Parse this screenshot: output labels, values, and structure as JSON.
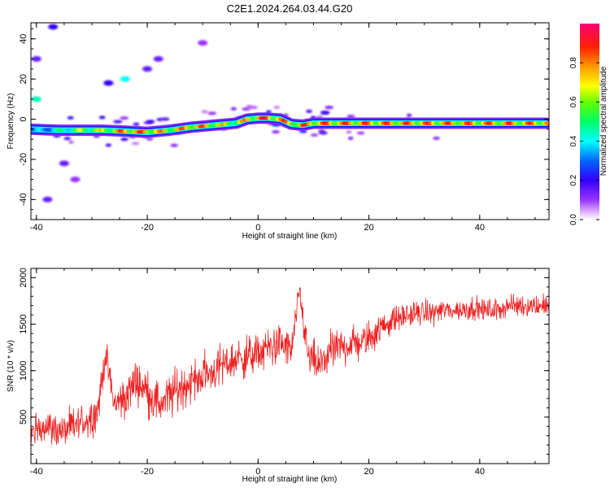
{
  "title": "C2E1.2024.264.03.44.G20",
  "chart_data": [
    {
      "type": "heatmap",
      "xlabel": "Height of straight line (km)",
      "ylabel": "Frequency (Hz)",
      "xlim": [
        -41,
        52.5
      ],
      "ylim": [
        -50,
        48
      ],
      "xticks": [
        -40,
        -20,
        0,
        20,
        40
      ],
      "yticks": [
        -40,
        -20,
        0,
        20,
        40
      ],
      "colorbar": {
        "label": "Normalized spectral amplitude",
        "range": [
          0.0,
          1.0
        ],
        "ticks": [
          0.0,
          0.2,
          0.4,
          0.6,
          0.8
        ],
        "colors": [
          "#ffffff",
          "#cc66ff",
          "#6600ff",
          "#0000ff",
          "#00ffff",
          "#00ff00",
          "#ffff00",
          "#ff8000",
          "#ff0000",
          "#ff0080"
        ]
      },
      "ridge": {
        "x": [
          -41,
          -36,
          -32,
          -28,
          -24,
          -20,
          -16,
          -12,
          -8,
          -4,
          -2,
          0,
          2,
          4,
          6,
          8,
          10,
          14,
          18,
          22,
          26,
          30,
          34,
          40,
          46,
          52
        ],
        "frequency": [
          -5,
          -5.5,
          -5.5,
          -5.5,
          -6,
          -6.5,
          -5.5,
          -4,
          -3,
          -2,
          0,
          0.5,
          0.5,
          0,
          -2.5,
          -3,
          -2,
          -2,
          -2,
          -2,
          -2,
          -2,
          -2,
          -2,
          -2,
          -2
        ],
        "amplitude": [
          0.35,
          0.5,
          0.7,
          0.75,
          0.9,
          0.9,
          0.8,
          0.9,
          0.85,
          0.7,
          0.85,
          0.95,
          0.95,
          0.9,
          0.85,
          0.9,
          0.9,
          0.92,
          0.92,
          0.9,
          0.92,
          0.9,
          0.9,
          0.9,
          0.9,
          0.9
        ]
      },
      "scatter": [
        {
          "x": -40,
          "frequency": 10,
          "amplitude": 0.45
        },
        {
          "x": -37,
          "frequency": 46,
          "amplitude": 0.2
        },
        {
          "x": -27,
          "frequency": 18,
          "amplitude": 0.2
        },
        {
          "x": -24,
          "frequency": 20,
          "amplitude": 0.4
        },
        {
          "x": -20,
          "frequency": 25,
          "amplitude": 0.15
        },
        {
          "x": -18,
          "frequency": 30,
          "amplitude": 0.15
        },
        {
          "x": -10,
          "frequency": 38,
          "amplitude": 0.1
        },
        {
          "x": -40,
          "frequency": 30,
          "amplitude": 0.15
        },
        {
          "x": -35,
          "frequency": -22,
          "amplitude": 0.15
        },
        {
          "x": -38,
          "frequency": -40,
          "amplitude": 0.15
        },
        {
          "x": -33,
          "frequency": -30,
          "amplitude": 0.1
        }
      ]
    },
    {
      "type": "line",
      "xlabel": "Height of straight line (km)",
      "ylabel": "SNR (10 * v/v)",
      "xlim": [
        -41,
        52.5
      ],
      "ylim": [
        0,
        2100
      ],
      "xticks": [
        -40,
        -20,
        0,
        20,
        40
      ],
      "yticks": [
        500,
        1000,
        1500,
        2000
      ],
      "color": "#ee2222",
      "series": [
        {
          "x": [
            -41,
            -39,
            -37,
            -35,
            -33,
            -31,
            -29,
            -27.5,
            -26,
            -24,
            -22,
            -20,
            -18,
            -16,
            -14,
            -12,
            -10,
            -8,
            -6,
            -4,
            -2,
            0,
            2,
            4,
            6,
            7.5,
            9,
            11,
            13,
            15,
            17,
            19,
            21,
            23,
            25,
            27,
            29,
            31,
            33,
            35,
            37,
            39,
            41,
            43,
            45,
            47,
            49,
            51,
            52.5
          ],
          "y": [
            300,
            420,
            380,
            350,
            410,
            470,
            560,
            1180,
            640,
            700,
            900,
            780,
            640,
            720,
            820,
            880,
            950,
            1000,
            1070,
            1120,
            1150,
            1180,
            1250,
            1300,
            1200,
            1850,
            1150,
            1050,
            1200,
            1250,
            1300,
            1300,
            1400,
            1500,
            1560,
            1600,
            1620,
            1620,
            1650,
            1650,
            1650,
            1680,
            1650,
            1650,
            1700,
            1700,
            1700,
            1700,
            1720
          ],
          "noise": [
            250,
            250,
            240,
            240,
            260,
            260,
            260,
            200,
            280,
            300,
            300,
            300,
            320,
            320,
            320,
            300,
            300,
            300,
            300,
            300,
            300,
            280,
            280,
            280,
            280,
            180,
            280,
            280,
            280,
            280,
            260,
            260,
            240,
            200,
            180,
            180,
            170,
            170,
            160,
            160,
            160,
            160,
            160,
            160,
            160,
            160,
            160,
            160,
            160
          ]
        }
      ]
    }
  ]
}
